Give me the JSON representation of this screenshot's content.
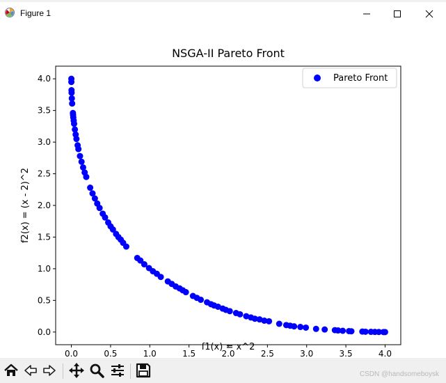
{
  "window": {
    "title": "Figure 1",
    "controls": [
      "minimize",
      "maximize",
      "close"
    ]
  },
  "toolbar": {
    "tools": [
      "home-icon",
      "back-icon",
      "forward-icon",
      "pan-icon",
      "zoom-icon",
      "configure-subplots-icon",
      "save-icon"
    ]
  },
  "watermark": "CSDN @handsomeboysk",
  "chart_data": {
    "type": "scatter",
    "title": "NSGA-II Pareto Front",
    "xlabel": "f1(x) = x^2",
    "ylabel": "f2(x) = (x - 2)^2",
    "xlim": [
      -0.2,
      4.2
    ],
    "ylim": [
      -0.2,
      4.2
    ],
    "xticks": [
      "0.0",
      "0.5",
      "1.0",
      "1.5",
      "2.0",
      "2.5",
      "3.0",
      "3.5",
      "4.0"
    ],
    "yticks": [
      "0.0",
      "0.5",
      "1.0",
      "1.5",
      "2.0",
      "2.5",
      "3.0",
      "3.5",
      "4.0"
    ],
    "grid": false,
    "legend": {
      "position": "top-right",
      "entries": [
        "Pareto Front"
      ]
    },
    "series": [
      {
        "name": "Pareto Front",
        "color": "#0000ff",
        "points": [
          [
            0.0,
            4.0
          ],
          [
            0.0,
            3.95
          ],
          [
            0.002,
            3.82
          ],
          [
            0.003,
            3.78
          ],
          [
            0.006,
            3.69
          ],
          [
            0.01,
            3.61
          ],
          [
            0.02,
            3.46
          ],
          [
            0.022,
            3.43
          ],
          [
            0.025,
            3.39
          ],
          [
            0.03,
            3.34
          ],
          [
            0.035,
            3.29
          ],
          [
            0.045,
            3.2
          ],
          [
            0.055,
            3.12
          ],
          [
            0.065,
            3.05
          ],
          [
            0.08,
            2.95
          ],
          [
            0.09,
            2.89
          ],
          [
            0.11,
            2.78
          ],
          [
            0.13,
            2.69
          ],
          [
            0.15,
            2.6
          ],
          [
            0.17,
            2.52
          ],
          [
            0.19,
            2.45
          ],
          [
            0.24,
            2.28
          ],
          [
            0.27,
            2.19
          ],
          [
            0.3,
            2.11
          ],
          [
            0.33,
            2.03
          ],
          [
            0.36,
            1.96
          ],
          [
            0.4,
            1.87
          ],
          [
            0.43,
            1.81
          ],
          [
            0.47,
            1.73
          ],
          [
            0.5,
            1.67
          ],
          [
            0.53,
            1.62
          ],
          [
            0.57,
            1.55
          ],
          [
            0.6,
            1.5
          ],
          [
            0.63,
            1.46
          ],
          [
            0.66,
            1.41
          ],
          [
            0.7,
            1.35
          ],
          [
            0.84,
            1.17
          ],
          [
            0.88,
            1.13
          ],
          [
            0.93,
            1.07
          ],
          [
            0.99,
            1.01
          ],
          [
            1.04,
            0.96
          ],
          [
            1.09,
            0.92
          ],
          [
            1.14,
            0.87
          ],
          [
            1.23,
            0.8
          ],
          [
            1.28,
            0.76
          ],
          [
            1.33,
            0.72
          ],
          [
            1.38,
            0.69
          ],
          [
            1.42,
            0.66
          ],
          [
            1.46,
            0.63
          ],
          [
            1.55,
            0.57
          ],
          [
            1.6,
            0.54
          ],
          [
            1.65,
            0.51
          ],
          [
            1.73,
            0.47
          ],
          [
            1.78,
            0.44
          ],
          [
            1.82,
            0.42
          ],
          [
            1.87,
            0.4
          ],
          [
            1.93,
            0.37
          ],
          [
            1.97,
            0.35
          ],
          [
            2.02,
            0.33
          ],
          [
            2.1,
            0.3
          ],
          [
            2.15,
            0.28
          ],
          [
            2.23,
            0.25
          ],
          [
            2.29,
            0.23
          ],
          [
            2.34,
            0.21
          ],
          [
            2.4,
            0.2
          ],
          [
            2.46,
            0.18
          ],
          [
            2.52,
            0.17
          ],
          [
            2.65,
            0.13
          ],
          [
            2.74,
            0.11
          ],
          [
            2.79,
            0.1
          ],
          [
            2.84,
            0.09
          ],
          [
            2.92,
            0.08
          ],
          [
            2.99,
            0.07
          ],
          [
            3.12,
            0.05
          ],
          [
            3.23,
            0.04
          ],
          [
            3.36,
            0.03
          ],
          [
            3.4,
            0.025
          ],
          [
            3.46,
            0.02
          ],
          [
            3.54,
            0.015
          ],
          [
            3.57,
            0.012
          ],
          [
            3.71,
            0.007
          ],
          [
            3.75,
            0.005
          ],
          [
            3.82,
            0.003
          ],
          [
            3.87,
            0.002
          ],
          [
            3.92,
            0.001
          ],
          [
            3.98,
            0.0
          ],
          [
            4.0,
            0.0
          ]
        ]
      }
    ]
  }
}
